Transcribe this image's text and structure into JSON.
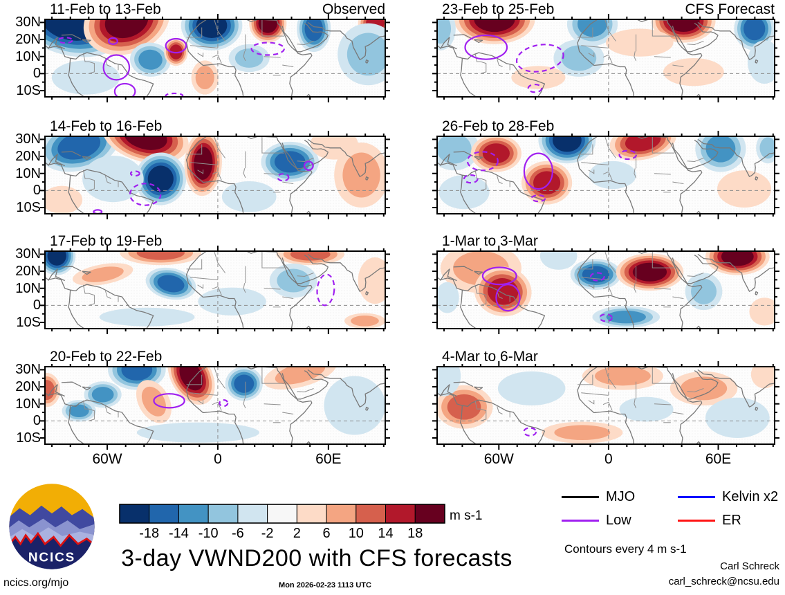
{
  "page_title": "3-day VWND200 with CFS forecasts",
  "logo": {
    "text": "NCICS"
  },
  "axes": {
    "lat_labels": [
      "30N",
      "20N",
      "10N",
      "0",
      "10S"
    ],
    "lat_fracs": [
      0.0396,
      0.2596,
      0.4796,
      0.6996,
      0.9196
    ],
    "lon_labels": [
      "60W",
      "0",
      "60E"
    ],
    "lon_fracs": [
      0.183,
      0.508,
      0.833
    ]
  },
  "colorbar": {
    "unit": "m s-1",
    "tick_labels": [
      "-18",
      "-14",
      "-10",
      "-6",
      "-2",
      "2",
      "6",
      "10",
      "14",
      "18"
    ],
    "colors": [
      "#08306b",
      "#2166ac",
      "#4393c3",
      "#92c5de",
      "#d1e5f0",
      "#f7f7f7",
      "#fddbc7",
      "#f4a582",
      "#d6604d",
      "#b2182b",
      "#67001f"
    ]
  },
  "legend": {
    "items": [
      {
        "label": "MJO",
        "color": "#000000"
      },
      {
        "label": "Kelvin x2",
        "color": "#0b0bff"
      },
      {
        "label": "Low",
        "color": "#a020f0"
      },
      {
        "label": "ER",
        "color": "#ff1515"
      }
    ],
    "note": "Contours every 4 m s-1"
  },
  "credits": {
    "site": "ncics.org/mjo",
    "timestamp": "Mon 2026-02-23 1113 UTC",
    "author": "Carl Schreck",
    "email": "carl_schreck@ncsu.edu"
  },
  "chart_data": {
    "type": "heatmap",
    "title": "3-day VWND200 with CFS forecasts",
    "variable": "VWND200 anomaly",
    "unit": "m s-1",
    "contour_note": "Contours every 4 m s-1",
    "colorbar_ticks": [
      -18,
      -14,
      -10,
      -6,
      -2,
      2,
      6,
      10,
      14,
      18
    ],
    "lat_ticks": [
      "30N",
      "20N",
      "10N",
      "0",
      "10S"
    ],
    "lon_ticks": [
      "60W",
      "0",
      "60E"
    ],
    "columns": [
      "Observed",
      "CFS Forecast"
    ],
    "panels": [
      {
        "title": "11-Feb to 13-Feb",
        "column": "Observed",
        "corner_label": "Observed",
        "anomalies": [
          [
            0.07,
            0.06,
            0.16,
            0.4,
            -5,
            15
          ],
          [
            0.24,
            0.02,
            0.13,
            0.42,
            5,
            -20
          ],
          [
            0.31,
            0.52,
            0.06,
            0.22,
            -3,
            5
          ],
          [
            0.385,
            0.42,
            0.035,
            0.18,
            4,
            0
          ],
          [
            0.49,
            0.08,
            0.09,
            0.32,
            -5,
            0
          ],
          [
            0.655,
            0.05,
            0.055,
            0.25,
            5,
            0
          ],
          [
            0.79,
            0.12,
            0.05,
            0.3,
            -4,
            0
          ],
          [
            0.97,
            0.05,
            0.05,
            0.22,
            4,
            0
          ],
          [
            0.95,
            0.45,
            0.09,
            0.4,
            -2,
            0
          ],
          [
            0.47,
            0.75,
            0.04,
            0.22,
            2,
            0
          ],
          [
            0.12,
            0.75,
            0.1,
            0.22,
            -1,
            0
          ],
          [
            0.6,
            0.5,
            0.06,
            0.18,
            -2,
            0
          ]
        ],
        "wave_contours": [
          [
            0.2,
            0.28,
            0.013,
            0.04,
            0,
            0
          ],
          [
            0.385,
            0.34,
            0.03,
            0.09,
            0,
            0
          ],
          [
            0.21,
            0.62,
            0.038,
            0.16,
            0,
            0
          ],
          [
            0.235,
            0.93,
            0.03,
            0.1,
            0,
            0
          ],
          [
            0.655,
            0.38,
            0.048,
            0.08,
            0,
            1
          ],
          [
            0.06,
            0.27,
            0.02,
            0.035,
            0,
            1
          ],
          [
            0.38,
            0.985,
            0.025,
            0.03,
            0,
            1
          ]
        ]
      },
      {
        "title": "14-Feb to 16-Feb",
        "column": "Observed",
        "anomalies": [
          [
            0.1,
            0.12,
            0.12,
            0.32,
            -4,
            -15
          ],
          [
            0.295,
            0.0,
            0.13,
            0.33,
            5,
            15
          ],
          [
            0.34,
            0.55,
            0.075,
            0.34,
            -5,
            8
          ],
          [
            0.465,
            0.35,
            0.055,
            0.42,
            5,
            3
          ],
          [
            0.2,
            0.55,
            0.09,
            0.3,
            -1,
            0
          ],
          [
            0.72,
            0.33,
            0.085,
            0.26,
            -4,
            0
          ],
          [
            0.93,
            0.5,
            0.08,
            0.42,
            2,
            0
          ],
          [
            0.05,
            0.82,
            0.06,
            0.18,
            1,
            0
          ],
          [
            0.6,
            0.78,
            0.08,
            0.2,
            -1,
            0
          ],
          [
            0.85,
            0.1,
            0.07,
            0.2,
            1,
            0
          ]
        ],
        "wave_contours": [
          [
            0.775,
            0.38,
            0.013,
            0.055,
            0,
            0
          ],
          [
            0.295,
            0.75,
            0.045,
            0.14,
            0,
            1
          ],
          [
            0.265,
            0.48,
            0.013,
            0.03,
            0,
            1
          ],
          [
            0.7,
            0.53,
            0.016,
            0.045,
            0,
            1
          ],
          [
            0.155,
            0.975,
            0.012,
            0.025,
            0,
            0
          ]
        ]
      },
      {
        "title": "17-Feb to 19-Feb",
        "column": "Observed",
        "anomalies": [
          [
            0.035,
            0.06,
            0.055,
            0.25,
            -5,
            0
          ],
          [
            0.34,
            0.02,
            0.12,
            0.16,
            3,
            0
          ],
          [
            0.17,
            0.3,
            0.09,
            0.13,
            2,
            -10
          ],
          [
            0.37,
            0.42,
            0.075,
            0.2,
            -4,
            12
          ],
          [
            0.78,
            0.04,
            0.1,
            0.14,
            3,
            0
          ],
          [
            0.97,
            0.38,
            0.05,
            0.3,
            1,
            0
          ],
          [
            0.3,
            0.85,
            0.14,
            0.12,
            -1,
            0
          ],
          [
            0.73,
            0.38,
            0.07,
            0.22,
            -2,
            0
          ],
          [
            0.94,
            0.9,
            0.06,
            0.1,
            2,
            0
          ],
          [
            0.55,
            0.65,
            0.1,
            0.18,
            -1,
            0
          ]
        ],
        "wave_contours": [
          [
            0.825,
            0.5,
            0.025,
            0.2,
            5,
            1
          ]
        ]
      },
      {
        "title": "20-Feb to 22-Feb",
        "column": "Observed",
        "anomalies": [
          [
            0.27,
            0.04,
            0.085,
            0.26,
            -4,
            0
          ],
          [
            0.43,
            0.12,
            0.06,
            0.4,
            5,
            -30
          ],
          [
            0.32,
            0.45,
            0.045,
            0.3,
            2,
            -30
          ],
          [
            0.17,
            0.36,
            0.055,
            0.17,
            -3,
            0
          ],
          [
            0.1,
            0.57,
            0.05,
            0.14,
            -3,
            0
          ],
          [
            0.005,
            0.3,
            0.04,
            0.22,
            3,
            0
          ],
          [
            0.585,
            0.22,
            0.055,
            0.22,
            -4,
            0
          ],
          [
            0.75,
            0.08,
            0.11,
            0.18,
            2,
            -15
          ],
          [
            0.91,
            0.5,
            0.09,
            0.38,
            -1,
            0
          ],
          [
            0.45,
            0.85,
            0.18,
            0.13,
            -1,
            0
          ]
        ],
        "wave_contours": [
          [
            0.365,
            0.44,
            0.045,
            0.09,
            0,
            0
          ],
          [
            0.525,
            0.47,
            0.012,
            0.04,
            0,
            1
          ]
        ]
      },
      {
        "title": "23-Feb to 25-Feb",
        "column": "CFS Forecast",
        "corner_label": "CFS Forecast",
        "anomalies": [
          [
            0.17,
            0.0,
            0.12,
            0.32,
            5,
            0
          ],
          [
            0.46,
            0.06,
            0.075,
            0.28,
            -3,
            0
          ],
          [
            0.73,
            0.02,
            0.095,
            0.28,
            5,
            0
          ],
          [
            0.94,
            0.12,
            0.06,
            0.28,
            -4,
            0
          ],
          [
            0.42,
            0.5,
            0.075,
            0.24,
            -2,
            0
          ],
          [
            0.6,
            0.3,
            0.1,
            0.18,
            1,
            0
          ],
          [
            0.01,
            0.12,
            0.045,
            0.28,
            -2,
            0
          ],
          [
            0.76,
            0.68,
            0.09,
            0.18,
            1,
            0
          ],
          [
            0.97,
            0.55,
            0.05,
            0.28,
            -1,
            0
          ],
          [
            0.3,
            0.75,
            0.08,
            0.15,
            1,
            0
          ]
        ],
        "wave_contours": [
          [
            0.145,
            0.36,
            0.062,
            0.155,
            0,
            0
          ],
          [
            0.305,
            0.5,
            0.07,
            0.17,
            -10,
            1
          ],
          [
            0.29,
            0.89,
            0.02,
            0.05,
            0,
            1
          ]
        ]
      },
      {
        "title": "26-Feb to 28-Feb",
        "column": "CFS Forecast",
        "anomalies": [
          [
            0.05,
            0.16,
            0.075,
            0.28,
            -2,
            0
          ],
          [
            0.175,
            0.22,
            0.075,
            0.24,
            4,
            0
          ],
          [
            0.385,
            0.05,
            0.085,
            0.3,
            -5,
            0
          ],
          [
            0.61,
            0.06,
            0.1,
            0.24,
            4,
            -12
          ],
          [
            0.84,
            0.16,
            0.075,
            0.3,
            -3,
            0
          ],
          [
            0.325,
            0.6,
            0.075,
            0.28,
            4,
            0
          ],
          [
            0.08,
            0.72,
            0.075,
            0.22,
            -1,
            0
          ],
          [
            0.91,
            0.68,
            0.08,
            0.24,
            1,
            0
          ],
          [
            0.52,
            0.5,
            0.07,
            0.18,
            -1,
            0
          ],
          [
            0.98,
            0.15,
            0.035,
            0.2,
            -2,
            0
          ]
        ],
        "wave_contours": [
          [
            0.3,
            0.45,
            0.042,
            0.23,
            0,
            0
          ],
          [
            0.135,
            0.32,
            0.045,
            0.12,
            0,
            1
          ],
          [
            0.1,
            0.55,
            0.02,
            0.05,
            0,
            1
          ],
          [
            0.565,
            0.24,
            0.025,
            0.055,
            0,
            1
          ],
          [
            0.3,
            0.8,
            0.02,
            0.04,
            0,
            1
          ]
        ]
      },
      {
        "title": "1-Mar to 3-Mar",
        "column": "CFS Forecast",
        "anomalies": [
          [
            0.13,
            0.22,
            0.12,
            0.32,
            2,
            0
          ],
          [
            0.195,
            0.52,
            0.085,
            0.32,
            4,
            8
          ],
          [
            0.47,
            0.3,
            0.075,
            0.2,
            -4,
            0
          ],
          [
            0.63,
            0.27,
            0.1,
            0.24,
            5,
            0
          ],
          [
            0.89,
            0.07,
            0.095,
            0.24,
            5,
            0
          ],
          [
            0.79,
            0.52,
            0.055,
            0.24,
            -2,
            0
          ],
          [
            0.56,
            0.85,
            0.1,
            0.14,
            -3,
            0
          ],
          [
            0.36,
            0.06,
            0.055,
            0.18,
            -1,
            0
          ],
          [
            0.97,
            0.78,
            0.045,
            0.18,
            1,
            0
          ],
          [
            0.03,
            0.6,
            0.035,
            0.2,
            -1,
            0
          ]
        ],
        "wave_contours": [
          [
            0.185,
            0.32,
            0.05,
            0.11,
            0,
            0
          ],
          [
            0.21,
            0.6,
            0.035,
            0.17,
            0,
            0
          ],
          [
            0.475,
            0.33,
            0.02,
            0.05,
            0,
            1
          ],
          [
            0.5,
            0.86,
            0.018,
            0.045,
            0,
            1
          ]
        ]
      },
      {
        "title": "4-Mar to 6-Mar",
        "column": "CFS Forecast",
        "anomalies": [
          [
            0.08,
            0.52,
            0.085,
            0.28,
            3,
            0
          ],
          [
            0.28,
            0.28,
            0.1,
            0.22,
            -1,
            0
          ],
          [
            0.55,
            0.12,
            0.12,
            0.18,
            2,
            0
          ],
          [
            0.79,
            0.28,
            0.1,
            0.22,
            2,
            0
          ],
          [
            0.89,
            0.66,
            0.095,
            0.26,
            -1,
            0
          ],
          [
            0.43,
            0.85,
            0.12,
            0.14,
            2,
            0
          ],
          [
            0.02,
            0.12,
            0.05,
            0.26,
            -1,
            0
          ],
          [
            0.97,
            0.1,
            0.04,
            0.18,
            1,
            0
          ],
          [
            0.62,
            0.55,
            0.08,
            0.16,
            -1,
            0
          ]
        ],
        "wave_contours": [
          [
            0.275,
            0.84,
            0.018,
            0.05,
            0,
            1
          ]
        ]
      }
    ]
  }
}
